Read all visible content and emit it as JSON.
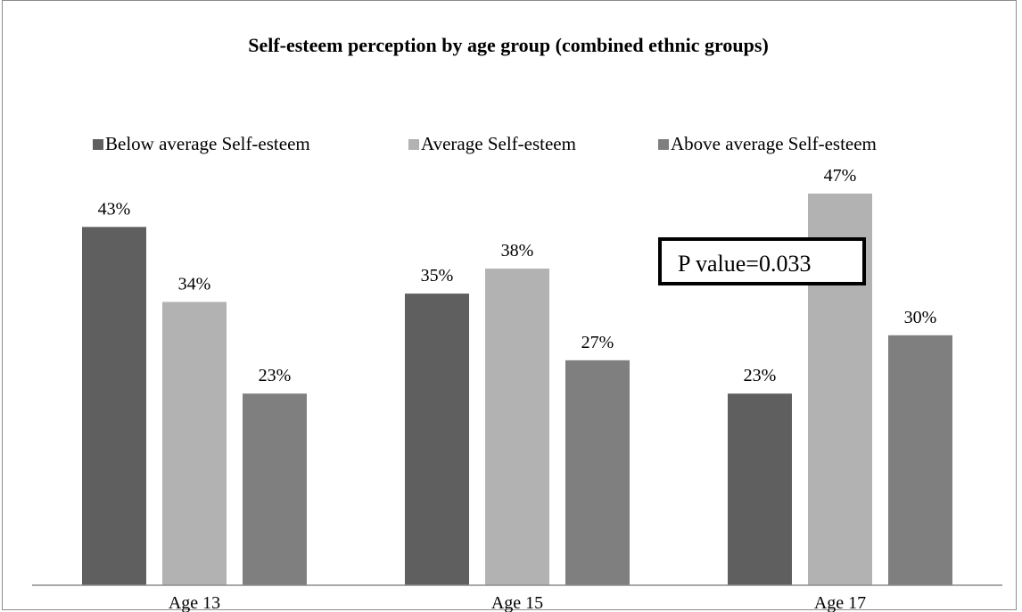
{
  "chart_data": {
    "type": "bar",
    "title": "Self-esteem perception by age group (combined ethnic groups)",
    "categories": [
      "Age 13",
      "Age 15",
      "Age 17"
    ],
    "series": [
      {
        "name": "Below average Self-esteem",
        "values": [
          43,
          35,
          23
        ],
        "labels": [
          "43%",
          "35%",
          "23%"
        ],
        "color": "#5f5f5f"
      },
      {
        "name": "Average Self-esteem",
        "values": [
          34,
          38,
          47
        ],
        "labels": [
          "34%",
          "38%",
          "47%"
        ],
        "color": "#b2b2b2"
      },
      {
        "name": "Above average Self-esteem",
        "values": [
          23,
          27,
          30
        ],
        "labels": [
          "23%",
          "27%",
          "30%"
        ],
        "color": "#7f7f7f"
      }
    ],
    "ylim": [
      0,
      50
    ],
    "grid": false,
    "legend_position": "top",
    "annotation": "P value=0.033"
  }
}
